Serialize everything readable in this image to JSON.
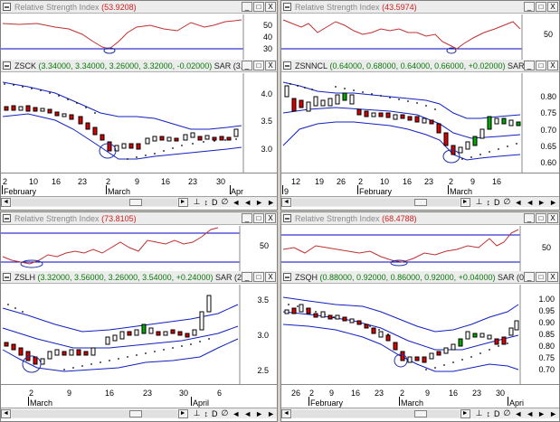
{
  "window_buttons": [
    "_",
    "□",
    "X"
  ],
  "nav_icons": [
    "⊥",
    "↕",
    "D",
    "∅",
    "◄",
    "◄",
    "►",
    "►"
  ],
  "scroll_icons": {
    "left": "◄",
    "right": "►"
  },
  "panels": [
    {
      "id": "zsck",
      "rsi_label": "Relative Strength Index",
      "rsi_value": "(53.9208)",
      "rsi_ticks": [
        "50",
        "40",
        "30"
      ],
      "price_symbol": "ZSCK",
      "price_ohlc": "(3.34000, 3.34000, 3.26000, 3.32000, -0.02000)",
      "price_sar": "SAR (3.3",
      "price_ticks": [
        "4.0",
        "3.5",
        "3.0"
      ],
      "x_days": [
        "2",
        "10",
        "16",
        "23",
        "2",
        "9",
        "16",
        "23",
        "30"
      ],
      "x_months": [
        "February",
        "March",
        "Apr"
      ]
    },
    {
      "id": "zsnncl",
      "rsi_label": "Relative Strength Index",
      "rsi_value": "(43.5974)",
      "rsi_ticks": [
        "50"
      ],
      "price_symbol": "ZSNNCL",
      "price_ohlc": "(0.64000, 0.68000, 0.64000, 0.66000, +0.02000)",
      "price_sar": "SAR",
      "price_ticks": [
        "0.80",
        "0.75",
        "0.70",
        "0.65",
        "0.60"
      ],
      "x_days": [
        "12",
        "19",
        "26",
        "2",
        "10",
        "16",
        "23",
        "2",
        "9",
        "16"
      ],
      "x_months": [
        "9",
        "February",
        "March"
      ]
    },
    {
      "id": "zslh",
      "rsi_label": "Relative Strength Index",
      "rsi_value": "(73.8105)",
      "rsi_ticks": [
        "50"
      ],
      "price_symbol": "ZSLH",
      "price_ohlc": "(3.32000, 3.56000, 3.26000, 3.54000, +0.24000)",
      "price_sar": "SAR (2.4",
      "price_ticks": [
        "3.5",
        "3.0",
        "2.5"
      ],
      "x_days": [
        "2",
        "9",
        "16",
        "23",
        "30",
        "6"
      ],
      "x_months": [
        "March",
        "April"
      ]
    },
    {
      "id": "zsqh",
      "rsi_label": "Relative Strength Index",
      "rsi_value": "(68.4788)",
      "rsi_ticks": [
        "50"
      ],
      "price_symbol": "ZSQH",
      "price_ohlc": "(0.88000, 0.92000, 0.86000, 0.92000, +0.04000)",
      "price_sar": "SAR (0.",
      "price_ticks": [
        "1.00",
        "0.95",
        "0.90",
        "0.85",
        "0.80",
        "0.75",
        "0.70"
      ],
      "x_days": [
        "26",
        "2",
        "9",
        "16",
        "23",
        "2",
        "9",
        "16",
        "23",
        "30"
      ],
      "x_months": [
        "February",
        "March",
        "Apri"
      ]
    }
  ]
}
